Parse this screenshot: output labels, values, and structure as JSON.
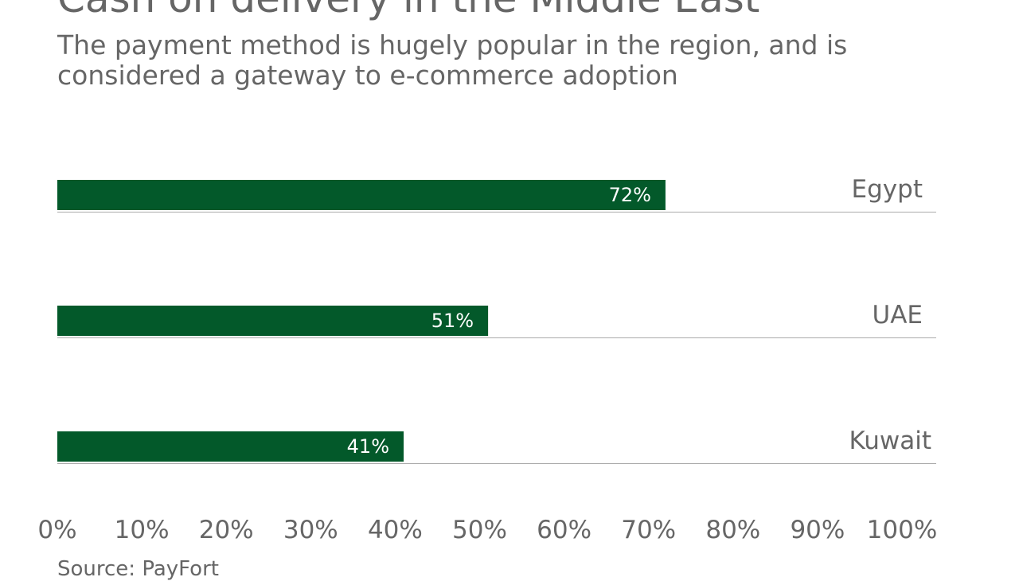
{
  "chart_data": {
    "type": "bar",
    "orientation": "horizontal",
    "title": "Cash on delivery in the Middle East",
    "subtitle": "The payment method is hugely popular in the region, and is considered a gateway to e-commerce adoption",
    "categories": [
      "Egypt",
      "UAE",
      "Kuwait"
    ],
    "values": [
      72,
      51,
      41
    ],
    "data_labels": [
      "72%",
      "51%",
      "41%"
    ],
    "xlim": [
      0,
      100
    ],
    "x_ticks": [
      "0%",
      "10%",
      "20%",
      "30%",
      "40%",
      "50%",
      "60%",
      "70%",
      "80%",
      "90%",
      "100%"
    ],
    "grid": false,
    "source": "Source: PayFort",
    "colors": {
      "bar": "#03592a",
      "text": "#666666",
      "baseline": "#aaaaaa",
      "label": "#ffffff"
    }
  }
}
